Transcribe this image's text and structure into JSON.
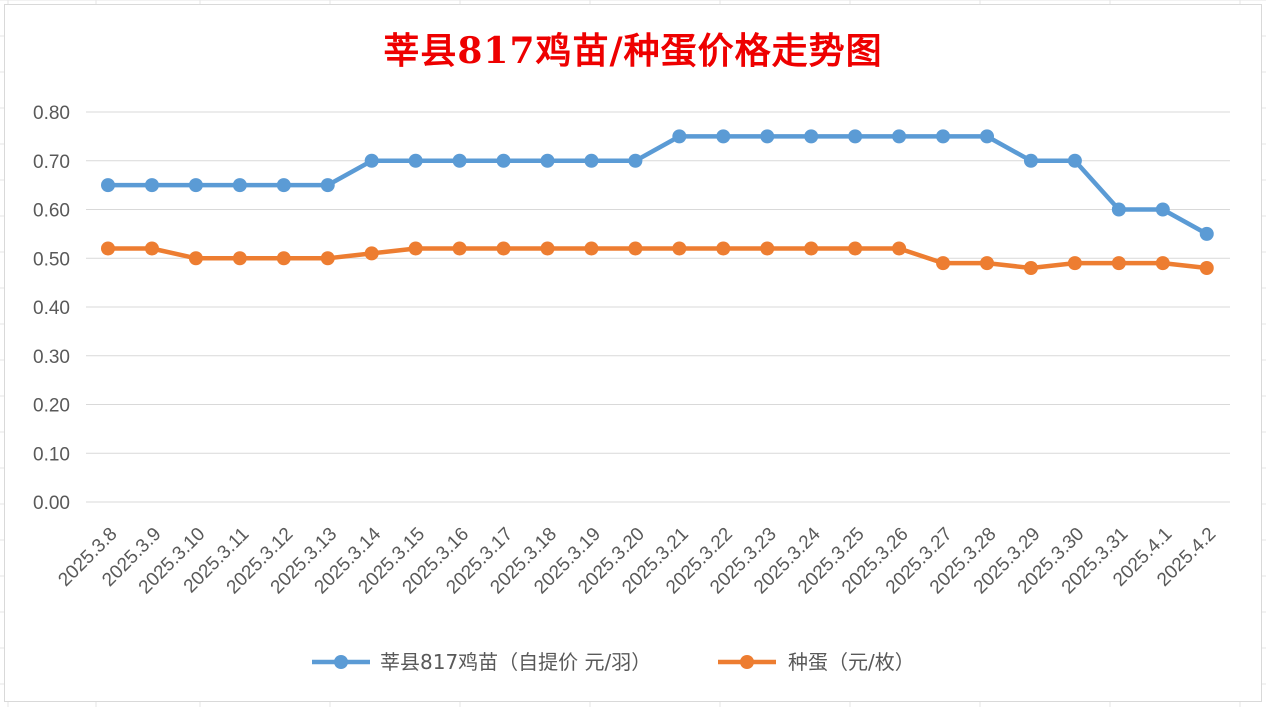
{
  "chart_data": {
    "type": "line",
    "title": "莘县817鸡苗/种蛋价格走势图",
    "xlabel": "",
    "ylabel": "",
    "ylim": [
      0,
      0.8
    ],
    "yticks": [
      "0.00",
      "0.10",
      "0.20",
      "0.30",
      "0.40",
      "0.50",
      "0.60",
      "0.70",
      "0.80"
    ],
    "grid": true,
    "legend_position": "bottom",
    "categories": [
      "2025.3.8",
      "2025.3.9",
      "2025.3.10",
      "2025.3.11",
      "2025.3.12",
      "2025.3.13",
      "2025.3.14",
      "2025.3.15",
      "2025.3.16",
      "2025.3.17",
      "2025.3.18",
      "2025.3.19",
      "2025.3.20",
      "2025.3.21",
      "2025.3.22",
      "2025.3.23",
      "2025.3.24",
      "2025.3.25",
      "2025.3.26",
      "2025.3.27",
      "2025.3.28",
      "2025.3.29",
      "2025.3.30",
      "2025.3.31",
      "2025.4.1",
      "2025.4.2"
    ],
    "series": [
      {
        "name": "莘县817鸡苗（自提价 元/羽）",
        "color": "#5b9bd5",
        "values": [
          0.65,
          0.65,
          0.65,
          0.65,
          0.65,
          0.65,
          0.7,
          0.7,
          0.7,
          0.7,
          0.7,
          0.7,
          0.7,
          0.75,
          0.75,
          0.75,
          0.75,
          0.75,
          0.75,
          0.75,
          0.75,
          0.7,
          0.7,
          0.6,
          0.6,
          0.55
        ]
      },
      {
        "name": "种蛋（元/枚）",
        "color": "#ed7d31",
        "values": [
          0.52,
          0.52,
          0.5,
          0.5,
          0.5,
          0.5,
          0.51,
          0.52,
          0.52,
          0.52,
          0.52,
          0.52,
          0.52,
          0.52,
          0.52,
          0.52,
          0.52,
          0.52,
          0.52,
          0.49,
          0.49,
          0.48,
          0.49,
          0.49,
          0.49,
          0.48
        ]
      }
    ]
  }
}
